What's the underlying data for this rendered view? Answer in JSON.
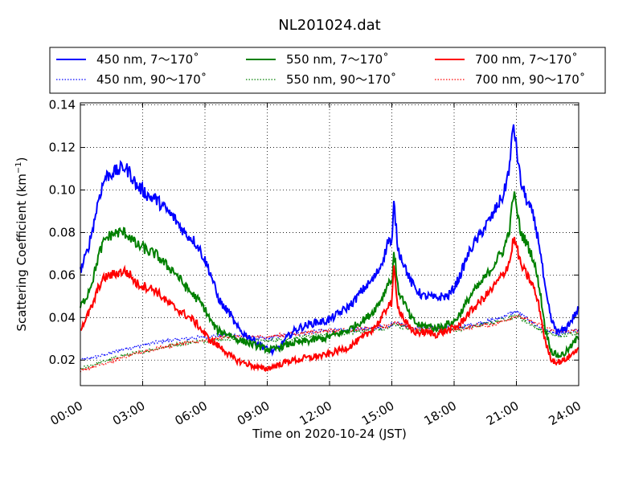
{
  "chart_data": {
    "type": "line",
    "title": "NL201024.dat",
    "xlabel": "Time on 2020-10-24 (JST)",
    "ylabel": "Scattering Coefficient (km",
    "ylabel_exponent": "−1",
    "ylabel_close": ")",
    "x_unit": "hours",
    "xlim": [
      0,
      24
    ],
    "ylim": [
      0.008,
      0.141
    ],
    "x_ticks": [
      0,
      3,
      6,
      9,
      12,
      15,
      18,
      21,
      24
    ],
    "x_tick_labels": [
      "00:00",
      "03:00",
      "06:00",
      "09:00",
      "12:00",
      "15:00",
      "18:00",
      "21:00",
      "24:00"
    ],
    "y_ticks": [
      0.02,
      0.04,
      0.06,
      0.08,
      0.1,
      0.12,
      0.14
    ],
    "y_tick_labels": [
      "0.02",
      "0.04",
      "0.06",
      "0.08",
      "0.10",
      "0.12",
      "0.14"
    ],
    "grid": true,
    "legend_position": "top, above plot",
    "series": [
      {
        "name": "450 nm, 7～170˚",
        "color": "#0000ff",
        "style": "solid",
        "x": [
          0,
          0.3,
          0.6,
          0.9,
          1.2,
          1.5,
          1.8,
          2.1,
          2.4,
          2.7,
          3.0,
          3.3,
          3.6,
          3.9,
          4.2,
          4.5,
          4.8,
          5.1,
          5.4,
          5.7,
          6.0,
          6.3,
          6.6,
          6.9,
          7.2,
          7.5,
          7.8,
          8.1,
          8.4,
          8.7,
          9.0,
          9.3,
          9.6,
          9.9,
          10.2,
          10.5,
          10.8,
          11.1,
          11.4,
          11.7,
          12.0,
          12.3,
          12.6,
          12.9,
          13.2,
          13.5,
          13.8,
          14.1,
          14.4,
          14.7,
          14.85,
          15.0,
          15.1,
          15.3,
          15.6,
          15.9,
          16.2,
          16.5,
          16.8,
          17.1,
          17.4,
          17.7,
          18.0,
          18.3,
          18.6,
          18.9,
          19.2,
          19.5,
          19.8,
          20.1,
          20.4,
          20.7,
          20.85,
          21.0,
          21.2,
          21.5,
          21.8,
          22.1,
          22.4,
          22.7,
          23.0,
          23.3,
          23.6,
          24.0
        ],
        "values": [
          0.062,
          0.07,
          0.082,
          0.097,
          0.106,
          0.108,
          0.109,
          0.111,
          0.108,
          0.102,
          0.1,
          0.097,
          0.096,
          0.093,
          0.09,
          0.087,
          0.083,
          0.079,
          0.077,
          0.073,
          0.067,
          0.06,
          0.05,
          0.045,
          0.042,
          0.036,
          0.033,
          0.031,
          0.029,
          0.027,
          0.025,
          0.024,
          0.026,
          0.03,
          0.033,
          0.035,
          0.036,
          0.037,
          0.038,
          0.038,
          0.039,
          0.041,
          0.043,
          0.045,
          0.048,
          0.052,
          0.055,
          0.058,
          0.063,
          0.071,
          0.078,
          0.073,
          0.094,
          0.072,
          0.065,
          0.057,
          0.053,
          0.05,
          0.05,
          0.049,
          0.05,
          0.05,
          0.054,
          0.06,
          0.068,
          0.074,
          0.078,
          0.083,
          0.087,
          0.093,
          0.098,
          0.113,
          0.132,
          0.12,
          0.104,
          0.095,
          0.088,
          0.075,
          0.052,
          0.038,
          0.033,
          0.034,
          0.038,
          0.044
        ]
      },
      {
        "name": "550 nm, 7～170˚",
        "color": "#008000",
        "style": "solid",
        "x": [
          0,
          0.3,
          0.6,
          0.9,
          1.2,
          1.5,
          1.8,
          2.1,
          2.4,
          2.7,
          3.0,
          3.3,
          3.6,
          3.9,
          4.2,
          4.5,
          4.8,
          5.1,
          5.4,
          5.7,
          6.0,
          6.3,
          6.6,
          6.9,
          7.2,
          7.5,
          7.8,
          8.1,
          8.4,
          8.7,
          9.0,
          9.3,
          9.6,
          9.9,
          10.2,
          10.5,
          10.8,
          11.1,
          11.4,
          11.7,
          12.0,
          12.3,
          12.6,
          12.9,
          13.2,
          13.5,
          13.8,
          14.1,
          14.4,
          14.7,
          14.85,
          15.0,
          15.1,
          15.3,
          15.6,
          15.9,
          16.2,
          16.5,
          16.8,
          17.1,
          17.4,
          17.7,
          18.0,
          18.3,
          18.6,
          18.9,
          19.2,
          19.5,
          19.8,
          20.1,
          20.4,
          20.7,
          20.85,
          21.0,
          21.2,
          21.5,
          21.8,
          22.1,
          22.4,
          22.7,
          23.0,
          23.3,
          23.6,
          24.0
        ],
        "values": [
          0.045,
          0.05,
          0.058,
          0.07,
          0.077,
          0.079,
          0.08,
          0.08,
          0.078,
          0.074,
          0.073,
          0.071,
          0.07,
          0.067,
          0.064,
          0.062,
          0.058,
          0.054,
          0.051,
          0.048,
          0.044,
          0.038,
          0.034,
          0.033,
          0.032,
          0.03,
          0.029,
          0.028,
          0.027,
          0.026,
          0.025,
          0.025,
          0.026,
          0.027,
          0.028,
          0.028,
          0.029,
          0.029,
          0.03,
          0.03,
          0.031,
          0.032,
          0.033,
          0.034,
          0.036,
          0.038,
          0.04,
          0.043,
          0.047,
          0.053,
          0.058,
          0.055,
          0.072,
          0.053,
          0.047,
          0.04,
          0.037,
          0.036,
          0.036,
          0.035,
          0.036,
          0.037,
          0.038,
          0.042,
          0.047,
          0.052,
          0.055,
          0.059,
          0.063,
          0.068,
          0.072,
          0.083,
          0.099,
          0.092,
          0.08,
          0.075,
          0.068,
          0.055,
          0.034,
          0.024,
          0.022,
          0.023,
          0.026,
          0.031
        ]
      },
      {
        "name": "700 nm, 7～170˚",
        "color": "#ff0000",
        "style": "solid",
        "x": [
          0,
          0.3,
          0.6,
          0.9,
          1.2,
          1.5,
          1.8,
          2.1,
          2.4,
          2.7,
          3.0,
          3.3,
          3.6,
          3.9,
          4.2,
          4.5,
          4.8,
          5.1,
          5.4,
          5.7,
          6.0,
          6.3,
          6.6,
          6.9,
          7.2,
          7.5,
          7.8,
          8.1,
          8.4,
          8.7,
          9.0,
          9.3,
          9.6,
          9.9,
          10.2,
          10.5,
          10.8,
          11.1,
          11.4,
          11.7,
          12.0,
          12.3,
          12.6,
          12.9,
          13.2,
          13.5,
          13.8,
          14.1,
          14.4,
          14.7,
          14.85,
          15.0,
          15.1,
          15.3,
          15.6,
          15.9,
          16.2,
          16.5,
          16.8,
          17.1,
          17.4,
          17.7,
          18.0,
          18.3,
          18.6,
          18.9,
          19.2,
          19.5,
          19.8,
          20.1,
          20.4,
          20.7,
          20.85,
          21.0,
          21.2,
          21.5,
          21.8,
          22.1,
          22.4,
          22.7,
          23.0,
          23.3,
          23.6,
          24.0
        ],
        "values": [
          0.035,
          0.04,
          0.046,
          0.055,
          0.059,
          0.06,
          0.061,
          0.062,
          0.06,
          0.056,
          0.055,
          0.054,
          0.053,
          0.05,
          0.047,
          0.045,
          0.043,
          0.041,
          0.039,
          0.036,
          0.032,
          0.029,
          0.027,
          0.025,
          0.022,
          0.02,
          0.019,
          0.018,
          0.017,
          0.016,
          0.016,
          0.017,
          0.018,
          0.019,
          0.02,
          0.02,
          0.021,
          0.021,
          0.022,
          0.022,
          0.023,
          0.024,
          0.025,
          0.026,
          0.028,
          0.03,
          0.032,
          0.035,
          0.038,
          0.043,
          0.047,
          0.046,
          0.064,
          0.045,
          0.039,
          0.034,
          0.033,
          0.033,
          0.033,
          0.032,
          0.033,
          0.034,
          0.035,
          0.037,
          0.041,
          0.044,
          0.047,
          0.05,
          0.053,
          0.057,
          0.061,
          0.067,
          0.077,
          0.074,
          0.065,
          0.06,
          0.055,
          0.045,
          0.028,
          0.02,
          0.019,
          0.02,
          0.022,
          0.026
        ]
      },
      {
        "name": "450 nm, 90～170˚",
        "color": "#0000ff",
        "style": "dotted",
        "x": [
          0,
          1,
          2,
          3,
          4,
          5,
          6,
          7,
          8,
          9,
          10,
          11,
          12,
          13,
          14,
          14.9,
          15.1,
          16,
          17,
          18,
          19,
          20,
          21,
          22,
          23,
          24
        ],
        "values": [
          0.02,
          0.022,
          0.025,
          0.027,
          0.029,
          0.03,
          0.031,
          0.032,
          0.031,
          0.03,
          0.032,
          0.033,
          0.034,
          0.034,
          0.035,
          0.036,
          0.038,
          0.035,
          0.035,
          0.035,
          0.037,
          0.039,
          0.043,
          0.036,
          0.032,
          0.034
        ]
      },
      {
        "name": "550 nm, 90～170˚",
        "color": "#008000",
        "style": "dotted",
        "x": [
          0,
          1,
          2,
          3,
          4,
          5,
          6,
          7,
          8,
          9,
          10,
          11,
          12,
          13,
          14,
          14.9,
          15.1,
          16,
          17,
          18,
          19,
          20,
          21,
          22,
          23,
          24
        ],
        "values": [
          0.016,
          0.019,
          0.022,
          0.024,
          0.026,
          0.028,
          0.029,
          0.03,
          0.029,
          0.029,
          0.03,
          0.031,
          0.032,
          0.033,
          0.034,
          0.035,
          0.037,
          0.034,
          0.034,
          0.034,
          0.036,
          0.038,
          0.041,
          0.035,
          0.031,
          0.033
        ]
      },
      {
        "name": "700 nm, 90～170˚",
        "color": "#ff0000",
        "style": "dotted",
        "x": [
          0,
          1,
          2,
          3,
          4,
          5,
          6,
          7,
          8,
          9,
          10,
          11,
          12,
          13,
          14,
          14.9,
          15.1,
          16,
          17,
          18,
          19,
          20,
          21,
          22,
          23,
          24
        ],
        "values": [
          0.015,
          0.018,
          0.021,
          0.024,
          0.026,
          0.028,
          0.029,
          0.031,
          0.031,
          0.031,
          0.032,
          0.033,
          0.034,
          0.034,
          0.035,
          0.036,
          0.038,
          0.035,
          0.035,
          0.034,
          0.036,
          0.037,
          0.041,
          0.037,
          0.033,
          0.034
        ]
      }
    ],
    "legend_order": [
      0,
      1,
      2,
      3,
      4,
      5
    ]
  }
}
